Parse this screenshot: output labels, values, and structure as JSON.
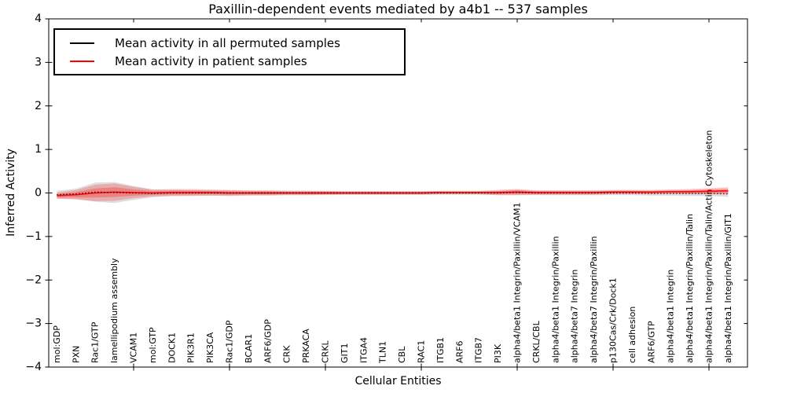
{
  "figure": {
    "title": "Paxillin-dependent events mediated by a4b1 -- 537 samples",
    "xlabel": "Cellular Entities",
    "ylabel": "Inferred Activity"
  },
  "legend": {
    "items": [
      {
        "label": "Mean activity in all permuted samples",
        "color": "#000000"
      },
      {
        "label": "Mean activity in patient samples",
        "color": "#ff0000"
      }
    ]
  },
  "chart_data": {
    "type": "line",
    "title": "Paxillin-dependent events mediated by a4b1 -- 537 samples",
    "xlabel": "Cellular Entities",
    "ylabel": "Inferred Activity",
    "ylim": [
      -4,
      4
    ],
    "yticks": [
      4,
      3,
      2,
      1,
      0,
      -1,
      -2,
      -3,
      -4
    ],
    "x_major_tick_every": 5,
    "grid": false,
    "legend_position": "upper left",
    "categories": [
      "mol:GDP",
      "PXN",
      "Rac1/GTP",
      "lamellipodium assembly",
      "VCAM1",
      "mol:GTP",
      "DOCK1",
      "PIK3R1",
      "PIK3CA",
      "Rac1/GDP",
      "BCAR1",
      "ARF6/GDP",
      "CRK",
      "PRKACA",
      "CRKL",
      "GIT1",
      "ITGA4",
      "TLN1",
      "CBL",
      "RAC1",
      "ITGB1",
      "ARF6",
      "ITGB7",
      "PI3K",
      "alpha4/beta1 Integrin/Paxillin/VCAM1",
      "CRKL/CBL",
      "alpha4/beta1 Integrin/Paxillin",
      "alpha4/beta7 Integrin",
      "alpha4/beta7 Integrin/Paxillin",
      "p130Cas/Crk/Dock1",
      "cell adhesion",
      "ARF6/GTP",
      "alpha4/beta1 Integrin",
      "alpha4/beta1 Integrin/Paxillin/Talin",
      "alpha4/beta1 Integrin/Paxillin/Talin/Actin Cytoskeleton",
      "alpha4/beta1 Integrin/Paxillin/GIT1"
    ],
    "series": [
      {
        "name": "Mean activity in all permuted samples",
        "color": "#000000",
        "style": "dotted",
        "values": [
          -0.04,
          -0.02,
          0.02,
          0.01,
          0,
          -0.01,
          0,
          0,
          0,
          0,
          0,
          0,
          0,
          0,
          0,
          0,
          0,
          0,
          0,
          0,
          0,
          0,
          0,
          0,
          0.01,
          0,
          0,
          0,
          0,
          0,
          0,
          -0.01,
          -0.01,
          -0.01,
          -0.01,
          -0.02
        ],
        "band": [
          0.09,
          0.12,
          0.22,
          0.24,
          0.16,
          0.09,
          0.07,
          0.06,
          0.06,
          0.06,
          0.05,
          0.05,
          0.05,
          0.05,
          0.04,
          0.04,
          0.04,
          0.04,
          0.04,
          0.04,
          0.04,
          0.04,
          0.04,
          0.05,
          0.06,
          0.05,
          0.05,
          0.05,
          0.05,
          0.05,
          0.05,
          0.05,
          0.05,
          0.06,
          0.06,
          0.07
        ]
      },
      {
        "name": "Mean activity in patient samples",
        "color": "#ff0000",
        "style": "solid",
        "values": [
          -0.06,
          -0.04,
          0,
          0.02,
          0.01,
          0,
          0.01,
          0.01,
          0.01,
          0,
          0,
          0,
          0,
          0,
          0,
          0,
          0,
          0,
          0,
          0,
          0.01,
          0.01,
          0.01,
          0.01,
          0.02,
          0.01,
          0.01,
          0.01,
          0.01,
          0.02,
          0.02,
          0.02,
          0.03,
          0.03,
          0.04,
          0.05
        ],
        "band": [
          0.07,
          0.11,
          0.19,
          0.2,
          0.13,
          0.08,
          0.08,
          0.08,
          0.07,
          0.07,
          0.06,
          0.06,
          0.05,
          0.05,
          0.05,
          0.04,
          0.04,
          0.04,
          0.04,
          0.04,
          0.04,
          0.04,
          0.04,
          0.06,
          0.07,
          0.05,
          0.05,
          0.05,
          0.05,
          0.05,
          0.05,
          0.05,
          0.05,
          0.06,
          0.07,
          0.08
        ]
      }
    ]
  }
}
